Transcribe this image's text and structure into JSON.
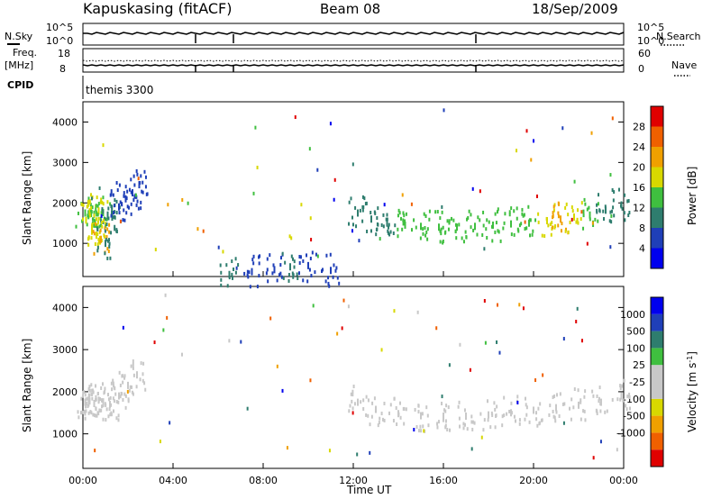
{
  "header": {
    "station": "Kapuskasing (fitACF)",
    "beam": "Beam 08",
    "date": "18/Sep/2009"
  },
  "status_panels": {
    "nsky_label": "N.Sky",
    "nsearch_label": "N.Search",
    "freq_label_1": "Freq.",
    "freq_label_2": "[MHz]",
    "nave_label": "Nave",
    "cpid_label": "CPID",
    "cpid_text": "themis 3300",
    "nsky_left_ticks": [
      "10^5",
      "10^0"
    ],
    "nsky_right_ticks": [
      "10^5",
      "10^0"
    ],
    "freq_left_ticks": [
      "18",
      "8"
    ],
    "nave_right_ticks": [
      "60",
      "0"
    ]
  },
  "x_axis": {
    "label": "Time UT",
    "ticks": [
      "00:00",
      "04:00",
      "08:00",
      "12:00",
      "16:00",
      "20:00",
      "00:00"
    ]
  },
  "colors": {
    "power_scale": [
      "#0000ee",
      "#1f3fb8",
      "#2e7d6e",
      "#3fbf3f",
      "#d8d800",
      "#f0a000",
      "#f06000",
      "#e00000"
    ],
    "velocity_scale": [
      "#e00000",
      "#f06000",
      "#f0a000",
      "#d8d800",
      "#c8c8c8",
      "#c8c8c8",
      "#3fbf3f",
      "#2e7d6e",
      "#1f3fb8",
      "#0000ee"
    ]
  },
  "chart_data": [
    {
      "type": "heatmap",
      "title": "Power",
      "ylabel": "Slant Range [km]",
      "xlabel": "",
      "xlim": [
        0,
        24
      ],
      "ylim": [
        180,
        4500
      ],
      "y_ticks": [
        "1000",
        "2000",
        "3000",
        "4000"
      ],
      "colorbar_label": "Power [dB]",
      "colorbar_ticks": [
        "4",
        "8",
        "12",
        "16",
        "20",
        "24",
        "28"
      ],
      "series": [
        {
          "x": [
            0.1,
            0.3,
            0.5,
            0.7,
            0.9,
            1.1,
            1.3,
            1.6,
            1.9,
            2.2,
            2.5
          ],
          "y": [
            1750,
            1780,
            1720,
            1800,
            1760,
            1700,
            1650,
            1900,
            2100,
            2250,
            2450
          ],
          "values": [
            14,
            16,
            12,
            16,
            14,
            10,
            8,
            6,
            6,
            5,
            6
          ]
        },
        {
          "x": [
            0.4,
            0.6,
            0.8,
            1.0
          ],
          "y": [
            1300,
            1200,
            1100,
            1000
          ],
          "values": [
            16,
            18,
            20,
            10
          ]
        },
        {
          "x": [
            12.2,
            12.8,
            13.5,
            14.3,
            15.0,
            15.8,
            16.6,
            17.4,
            18.2,
            19.0,
            19.8,
            20.6,
            21.2,
            21.8,
            22.5,
            23.2,
            23.9
          ],
          "y": [
            1750,
            1600,
            1500,
            1450,
            1420,
            1400,
            1400,
            1420,
            1450,
            1480,
            1500,
            1560,
            1600,
            1650,
            1700,
            1820,
            1950
          ],
          "values": [
            8,
            10,
            10,
            12,
            14,
            14,
            14,
            12,
            12,
            12,
            14,
            18,
            22,
            18,
            14,
            10,
            8
          ]
        },
        {
          "x": [
            6.5,
            7.5,
            8.5,
            9.2,
            10.0,
            11.0
          ],
          "y": [
            230,
            300,
            350,
            420,
            450,
            330
          ],
          "values": [
            8,
            6,
            6,
            8,
            6,
            6
          ]
        }
      ]
    },
    {
      "type": "heatmap",
      "title": "Velocity",
      "ylabel": "Slant Range [km]",
      "xlabel": "Time UT",
      "xlim": [
        0,
        24
      ],
      "ylim": [
        180,
        4500
      ],
      "y_ticks": [
        "1000",
        "2000",
        "3000",
        "4000"
      ],
      "colorbar_label": "Velocity [m s^-1]",
      "colorbar_ticks": [
        "1000",
        "500",
        "100",
        "25",
        "-25",
        "-100",
        "-500",
        "-1000"
      ],
      "series": [
        {
          "x": [
            0.1,
            0.3,
            0.5,
            0.7,
            0.9,
            1.2,
            1.6,
            2.0,
            2.4
          ],
          "y": [
            1750,
            1780,
            1720,
            1800,
            1760,
            1700,
            1900,
            2150,
            2400
          ],
          "values": [
            0,
            0,
            0,
            0,
            0,
            0,
            0,
            0,
            0
          ]
        },
        {
          "x": [
            12.2,
            13.0,
            14.0,
            15.0,
            16.0,
            17.0,
            18.0,
            19.0,
            20.0,
            21.0,
            22.0,
            23.0,
            23.9
          ],
          "y": [
            1750,
            1580,
            1480,
            1430,
            1420,
            1420,
            1450,
            1500,
            1560,
            1620,
            1680,
            1750,
            1900
          ],
          "values": [
            0,
            0,
            0,
            0,
            0,
            0,
            0,
            0,
            0,
            0,
            0,
            0,
            0
          ]
        }
      ]
    }
  ]
}
